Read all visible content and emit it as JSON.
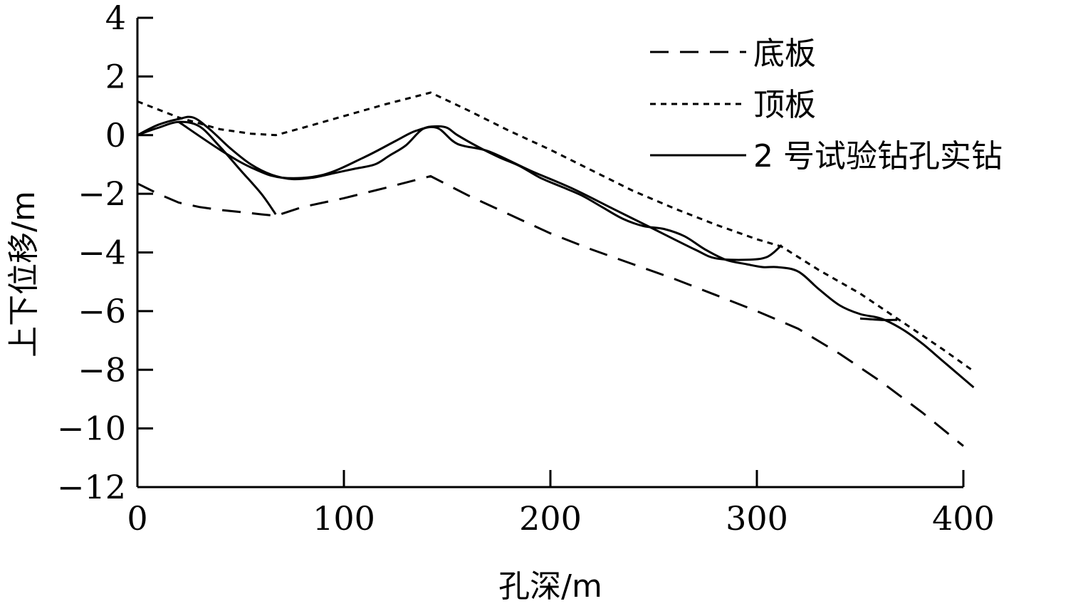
{
  "chart_data": {
    "type": "line",
    "title": "",
    "xlabel": "孔深/m",
    "ylabel": "上下位移/m",
    "xlim": [
      0,
      400
    ],
    "ylim": [
      -12,
      4
    ],
    "xticks": [
      0,
      100,
      200,
      300,
      400
    ],
    "yticks": [
      4,
      2,
      0,
      -2,
      -4,
      -6,
      -8,
      -10,
      -12
    ],
    "xtick_labels": [
      "0",
      "100",
      "200",
      "300",
      "400"
    ],
    "ytick_labels": [
      "4",
      "2",
      "0",
      "−2",
      "−4",
      "−6",
      "−8",
      "−10",
      "−12"
    ],
    "grid": false,
    "legend_position": "top-right",
    "series": [
      {
        "name": "底板",
        "style": "dashed",
        "x": [
          0,
          10,
          20,
          30,
          40,
          50,
          60,
          67,
          80,
          100,
          120,
          142,
          160,
          180,
          200,
          220,
          240,
          260,
          280,
          300,
          320,
          340,
          360,
          380,
          400
        ],
        "y": [
          -1.65,
          -2.0,
          -2.3,
          -2.45,
          -2.55,
          -2.62,
          -2.7,
          -2.75,
          -2.45,
          -2.15,
          -1.8,
          -1.4,
          -2.05,
          -2.7,
          -3.35,
          -3.9,
          -4.4,
          -4.9,
          -5.45,
          -6.0,
          -6.6,
          -7.45,
          -8.4,
          -9.45,
          -10.6
        ]
      },
      {
        "name": "顶板",
        "style": "dotted",
        "x": [
          0,
          20,
          40,
          55,
          67,
          80,
          100,
          120,
          142,
          160,
          180,
          200,
          220,
          240,
          260,
          280,
          300,
          312,
          330,
          350,
          370,
          390,
          405
        ],
        "y": [
          1.15,
          0.6,
          0.2,
          0.05,
          0.0,
          0.25,
          0.65,
          1.05,
          1.45,
          0.85,
          0.15,
          -0.5,
          -1.2,
          -1.9,
          -2.5,
          -3.05,
          -3.55,
          -3.8,
          -4.6,
          -5.4,
          -6.35,
          -7.3,
          -8.05
        ]
      },
      {
        "name": "2 号试验钻孔实钻",
        "style": "solid",
        "segments": [
          {
            "x": [
              0,
              10,
              20,
              27,
              35,
              45,
              55,
              65,
              75,
              85,
              95,
              105,
              115,
              122,
              130,
              138,
              145,
              150,
              155,
              165,
              175,
              185,
              195,
              205,
              215,
              225,
              235,
              245,
              255,
              265,
              275,
              285,
              295,
              303,
              310,
              320,
              330,
              340,
              350,
              360,
              370,
              380,
              390,
              400,
              405
            ],
            "y": [
              0.0,
              0.35,
              0.55,
              0.6,
              0.2,
              -0.45,
              -1.0,
              -1.35,
              -1.5,
              -1.45,
              -1.3,
              -1.15,
              -1.0,
              -0.7,
              -0.35,
              0.2,
              0.3,
              0.25,
              0.0,
              -0.4,
              -0.75,
              -1.05,
              -1.45,
              -1.75,
              -2.05,
              -2.45,
              -2.85,
              -3.1,
              -3.2,
              -3.45,
              -3.9,
              -4.25,
              -4.4,
              -4.5,
              -4.5,
              -4.65,
              -5.25,
              -5.8,
              -6.1,
              -6.25,
              -6.6,
              -7.1,
              -7.7,
              -8.3,
              -8.6
            ]
          },
          {
            "x": [
              0,
              10,
              20,
              30,
              40,
              50,
              60,
              67
            ],
            "y": [
              0.0,
              0.25,
              0.45,
              0.3,
              -0.4,
              -1.2,
              -2.0,
              -2.7
            ]
          },
          {
            "x": [
              20,
              40,
              55,
              70,
              90,
              110,
              125,
              135,
              145,
              155,
              170,
              190,
              210,
              230,
              250,
              270,
              280,
              295,
              305,
              312
            ],
            "y": [
              0.45,
              -0.5,
              -1.1,
              -1.45,
              -1.35,
              -0.75,
              -0.2,
              0.15,
              0.25,
              -0.3,
              -0.55,
              -1.2,
              -1.8,
              -2.5,
              -3.2,
              -3.9,
              -4.2,
              -4.25,
              -4.15,
              -3.75
            ]
          },
          {
            "x": [
              350,
              360,
              368
            ],
            "y": [
              -6.25,
              -6.3,
              -6.3
            ]
          }
        ]
      }
    ]
  }
}
